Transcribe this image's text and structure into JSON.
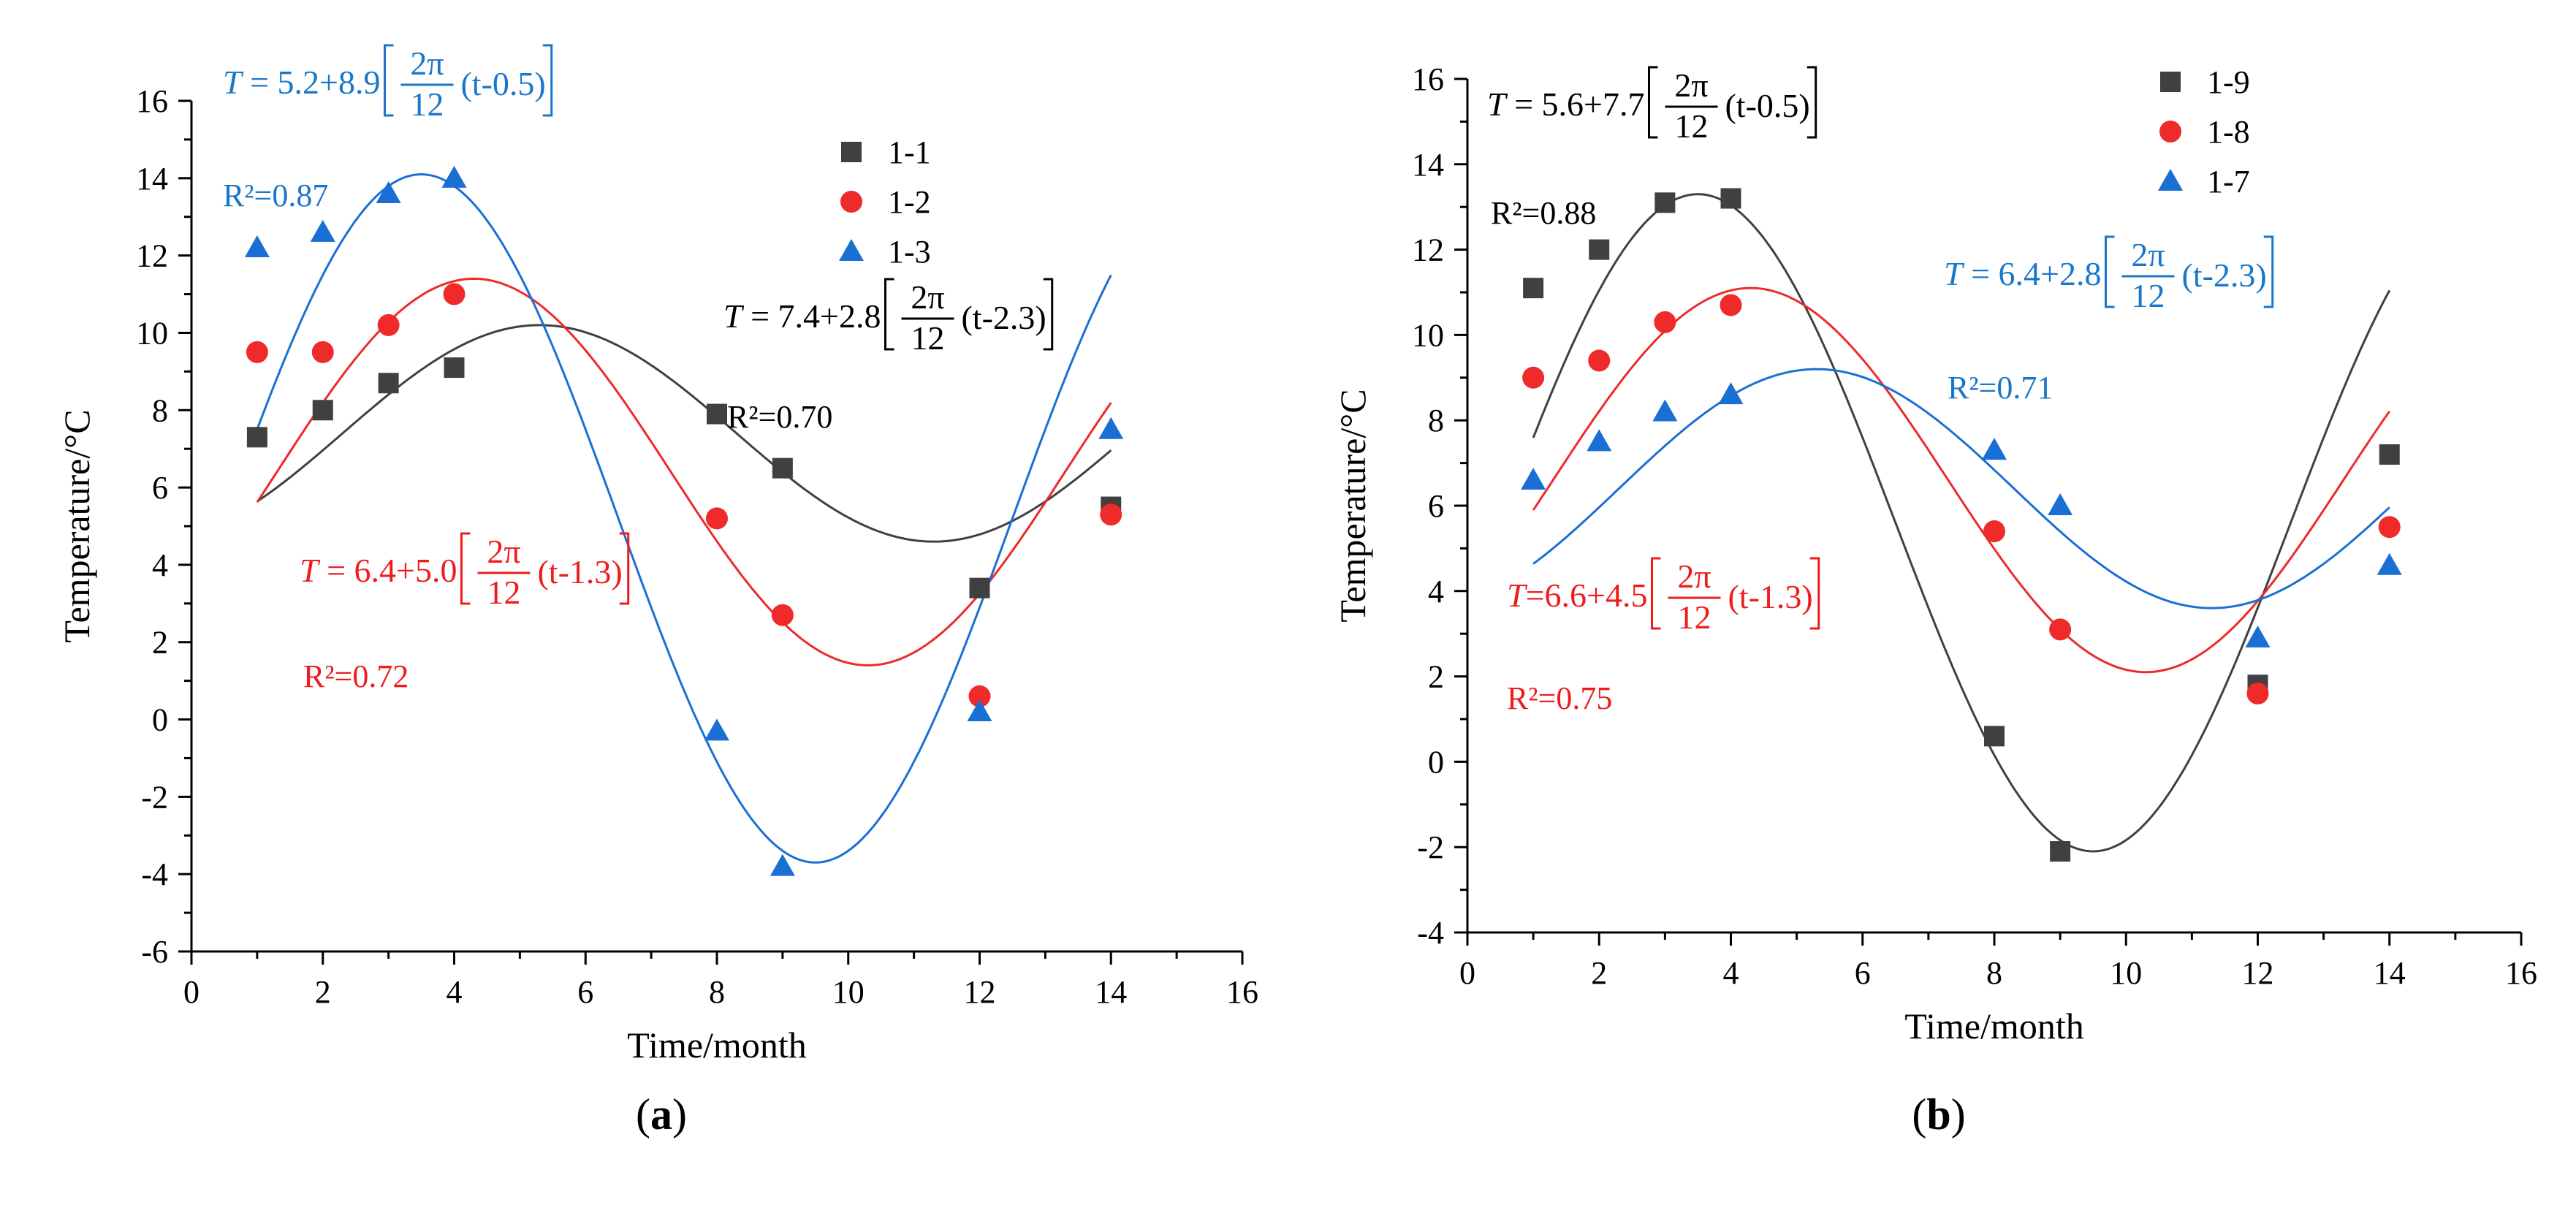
{
  "colors": {
    "black": "#404040",
    "red": "#ee2a2a",
    "blue": "#1a6fd4",
    "blackText": "#000000",
    "redText": "#ee1c1c",
    "blueText": "#1a76c9"
  },
  "chart_data": [
    {
      "type": "scatter",
      "panel_label": "(a)",
      "panel_letter": "a",
      "xlabel": "Time/month",
      "ylabel": "Temperature/°C",
      "xlim": [
        0,
        16
      ],
      "ylim": [
        -6,
        16
      ],
      "xticks": [
        0,
        2,
        4,
        6,
        8,
        10,
        12,
        14,
        16
      ],
      "yticks": [
        -6,
        -4,
        -2,
        0,
        2,
        4,
        6,
        8,
        10,
        12,
        14,
        16
      ],
      "legend_placement": "top-right",
      "series": [
        {
          "name": "1-1",
          "marker": "square",
          "color": "black",
          "x": [
            1,
            2,
            3,
            4,
            8,
            9,
            12,
            14
          ],
          "y": [
            7.3,
            8.0,
            8.7,
            9.1,
            7.9,
            6.5,
            3.4,
            5.5
          ],
          "fit": {
            "A": 7.4,
            "B": 2.8,
            "phase": 2.3,
            "x_range": [
              1,
              14
            ]
          },
          "equation": {
            "lhs": "T",
            "mid": " = 7.4+2.8 ",
            "frac_num": "2π",
            "frac_den": "12",
            "tail": "(t-2.3)"
          },
          "r2": "R²=0.70"
        },
        {
          "name": "1-2",
          "marker": "circle",
          "color": "red",
          "x": [
            1,
            2,
            3,
            4,
            8,
            9,
            12,
            14
          ],
          "y": [
            9.5,
            9.5,
            10.2,
            11.0,
            5.2,
            2.7,
            0.6,
            5.3
          ],
          "fit": {
            "A": 6.4,
            "B": 5.0,
            "phase": 1.3,
            "x_range": [
              1,
              14
            ]
          },
          "equation": {
            "lhs": "T",
            "mid": " = 6.4+5.0 ",
            "frac_num": "2π",
            "frac_den": "12",
            "tail": "(t-1.3)"
          },
          "r2": "R²=0.72"
        },
        {
          "name": "1-3",
          "marker": "triangle",
          "color": "blue",
          "x": [
            1,
            2,
            3,
            4,
            8,
            9,
            12,
            14
          ],
          "y": [
            12.2,
            12.6,
            13.6,
            14.0,
            -0.3,
            -3.8,
            0.2,
            7.5
          ],
          "fit": {
            "A": 5.2,
            "B": 8.9,
            "phase": 0.5,
            "x_range": [
              1,
              14
            ]
          },
          "equation": {
            "lhs": "T",
            "mid": " = 5.2+8.9 ",
            "frac_num": "2π",
            "frac_den": "12",
            "tail": "(t-0.5)"
          },
          "r2": "R²=0.87"
        }
      ]
    },
    {
      "type": "scatter",
      "panel_label": "(b)",
      "panel_letter": "b",
      "xlabel": "Time/month",
      "ylabel": "Temperature/°C",
      "xlim": [
        0,
        16
      ],
      "ylim": [
        -4,
        16
      ],
      "xticks": [
        0,
        2,
        4,
        6,
        8,
        10,
        12,
        14,
        16
      ],
      "yticks": [
        -4,
        -2,
        0,
        2,
        4,
        6,
        8,
        10,
        12,
        14,
        16
      ],
      "legend_placement": "top-center",
      "series": [
        {
          "name": "1-9",
          "marker": "square",
          "color": "black",
          "x": [
            1,
            2,
            3,
            4,
            8,
            9,
            12,
            14
          ],
          "y": [
            11.1,
            12.0,
            13.1,
            13.2,
            0.6,
            -2.1,
            1.8,
            7.2
          ],
          "fit": {
            "A": 5.6,
            "B": 7.7,
            "phase": 0.5,
            "x_range": [
              1,
              14
            ]
          },
          "equation": {
            "lhs": "T",
            "mid": " = 5.6+7.7 ",
            "frac_num": "2π",
            "frac_den": "12",
            "tail": "(t-0.5)"
          },
          "r2": "R²=0.88"
        },
        {
          "name": "1-8",
          "marker": "circle",
          "color": "red",
          "x": [
            1,
            2,
            3,
            4,
            8,
            9,
            12,
            14
          ],
          "y": [
            9.0,
            9.4,
            10.3,
            10.7,
            5.4,
            3.1,
            1.6,
            5.5
          ],
          "fit": {
            "A": 6.6,
            "B": 4.5,
            "phase": 1.3,
            "x_range": [
              1,
              14
            ]
          },
          "equation": {
            "lhs": "T",
            "mid": "=6.6+4.5 ",
            "frac_num": "2π",
            "frac_den": "12",
            "tail": "(t-1.3)"
          },
          "r2": "R²=0.75"
        },
        {
          "name": "1-7",
          "marker": "triangle",
          "color": "blue",
          "x": [
            1,
            2,
            3,
            4,
            8,
            9,
            12,
            14
          ],
          "y": [
            6.6,
            7.5,
            8.2,
            8.6,
            7.3,
            6.0,
            2.9,
            4.6
          ],
          "fit": {
            "A": 6.4,
            "B": 2.8,
            "phase": 2.3,
            "x_range": [
              1,
              14
            ]
          },
          "equation": {
            "lhs": "T",
            "mid": " = 6.4+2.8 ",
            "frac_num": "2π",
            "frac_den": "12",
            "tail": "(t-2.3)"
          },
          "r2": "R²=0.71"
        }
      ]
    }
  ]
}
